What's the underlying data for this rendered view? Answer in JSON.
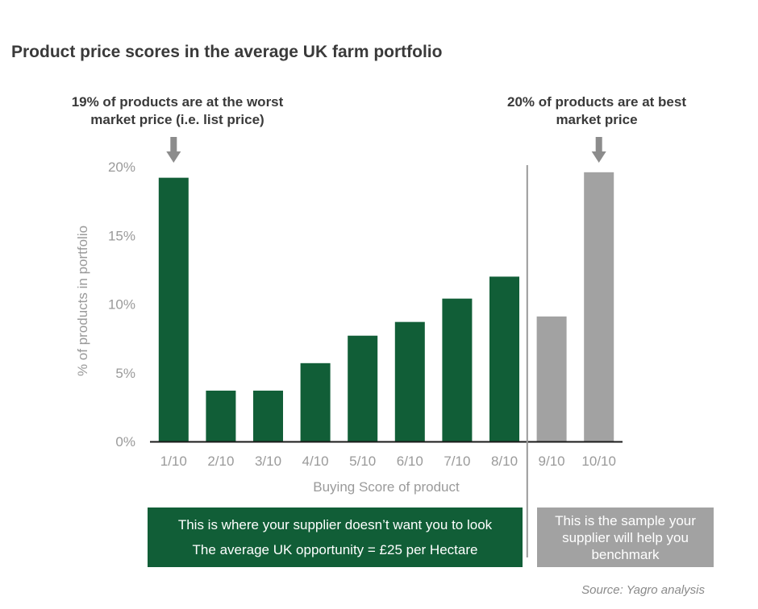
{
  "title": "Product price scores in the average UK farm portfolio",
  "callouts": {
    "left": {
      "line1": "19% of products are at the worst",
      "line2": "market price (i.e. list price)"
    },
    "right": {
      "line1": "20% of products are at best",
      "line2": "market price"
    }
  },
  "banners": {
    "green": {
      "line1": "This is where your supplier doesn’t want you to look",
      "line2": "The average UK opportunity = £25 per Hectare"
    },
    "grey": {
      "line1": "This is the sample your",
      "line2": "supplier will help you",
      "line3": "benchmark"
    }
  },
  "source": "Source: Yagro analysis",
  "colors": {
    "green": "#115e37",
    "grey": "#a2a2a2",
    "axis_text": "#9a9a9a",
    "title": "#3a3a3a"
  },
  "chart_data": {
    "type": "bar",
    "title": "Product price scores in the average UK farm portfolio",
    "xlabel": "Buying Score of product",
    "ylabel": "% of products in portfolio",
    "categories": [
      "1/10",
      "2/10",
      "3/10",
      "4/10",
      "5/10",
      "6/10",
      "7/10",
      "8/10",
      "9/10",
      "10/10"
    ],
    "values": [
      19.2,
      3.7,
      3.7,
      5.7,
      7.7,
      8.7,
      10.4,
      12.0,
      9.1,
      19.6
    ],
    "bar_colors": [
      "#115e37",
      "#115e37",
      "#115e37",
      "#115e37",
      "#115e37",
      "#115e37",
      "#115e37",
      "#115e37",
      "#a2a2a2",
      "#a2a2a2"
    ],
    "yticks": [
      0,
      5,
      10,
      15,
      20
    ],
    "ytick_labels": [
      "0%",
      "5%",
      "10%",
      "15%",
      "20%"
    ],
    "ylim": [
      0,
      20
    ],
    "grid": false,
    "divider_between": [
      "8/10",
      "9/10"
    ],
    "arrow_categories": [
      "1/10",
      "10/10"
    ]
  }
}
